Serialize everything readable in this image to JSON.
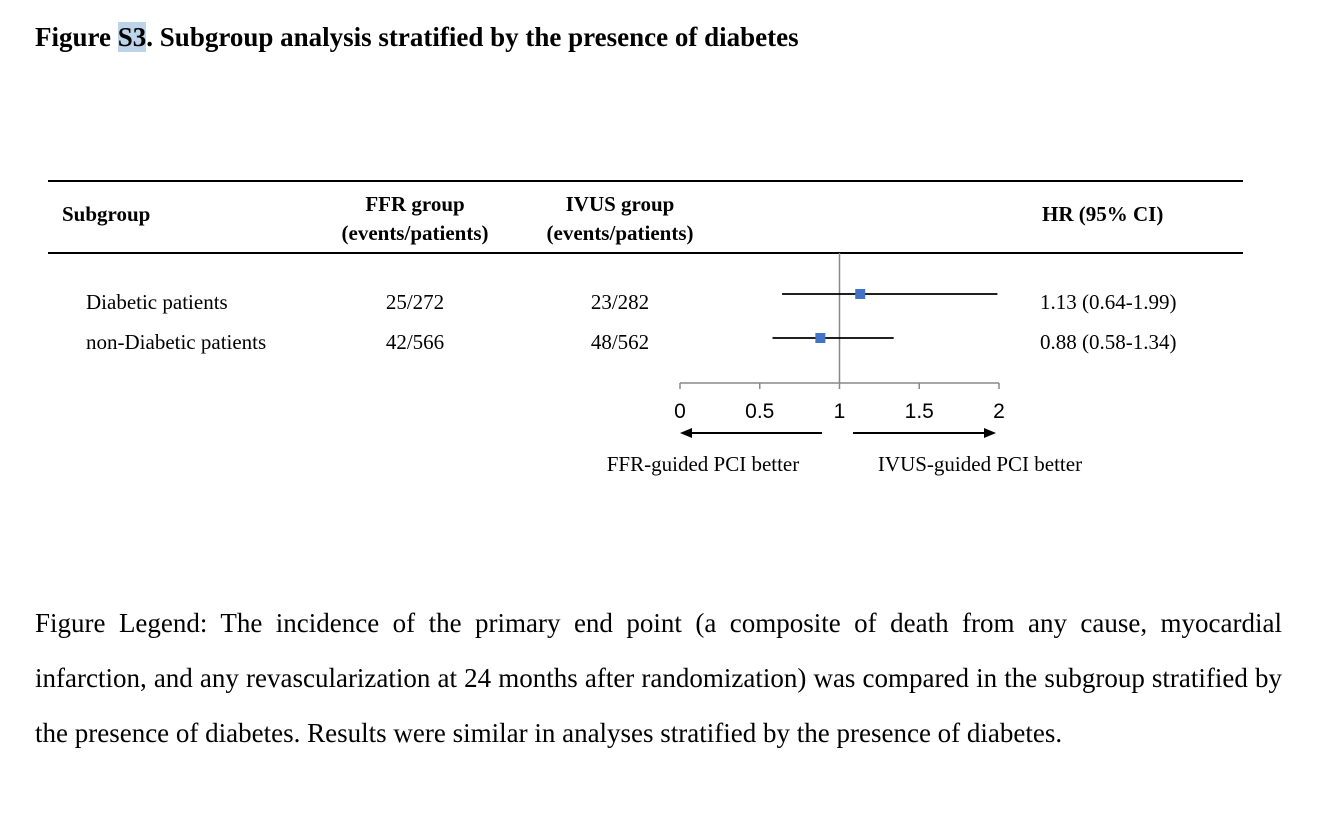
{
  "title": {
    "prefix": "Figure ",
    "highlight": "S3",
    "suffix": ". Subgroup analysis stratified by the presence of diabetes"
  },
  "table": {
    "headers": {
      "subgroup": "Subgroup",
      "ffr_line1": "FFR group",
      "ffr_line2": "(events/patients)",
      "ivus_line1": "IVUS group",
      "ivus_line2": "(events/patients)",
      "hr": "HR (95% CI)"
    },
    "rows": [
      {
        "subgroup": "Diabetic patients",
        "ffr": "25/272",
        "ivus": "23/282",
        "hr_text": "1.13 (0.64-1.99)"
      },
      {
        "subgroup": "non-Diabetic patients",
        "ffr": "42/566",
        "ivus": "48/562",
        "hr_text": "0.88 (0.58-1.34)"
      }
    ]
  },
  "chart_data": {
    "type": "forest",
    "x_ticks": [
      "0",
      "0.5",
      "1",
      "1.5",
      "2"
    ],
    "xlim": [
      0,
      2
    ],
    "reference_line": 1,
    "series": [
      {
        "label": "Diabetic patients",
        "hr": 1.13,
        "ci_low": 0.64,
        "ci_high": 1.99
      },
      {
        "label": "non-Diabetic patients",
        "hr": 0.88,
        "ci_low": 0.58,
        "ci_high": 1.34
      }
    ],
    "left_annotation": "FFR-guided PCI better",
    "right_annotation": "IVUS-guided PCI better",
    "marker_color": "#4472c4"
  },
  "legend": "Figure Legend: The incidence of the primary end point (a composite of death from any cause, myocardial infarction, and any revascularization at 24 months after randomization) was compared in the subgroup stratified by the presence of diabetes. Results were similar in analyses stratified by the presence of diabetes."
}
